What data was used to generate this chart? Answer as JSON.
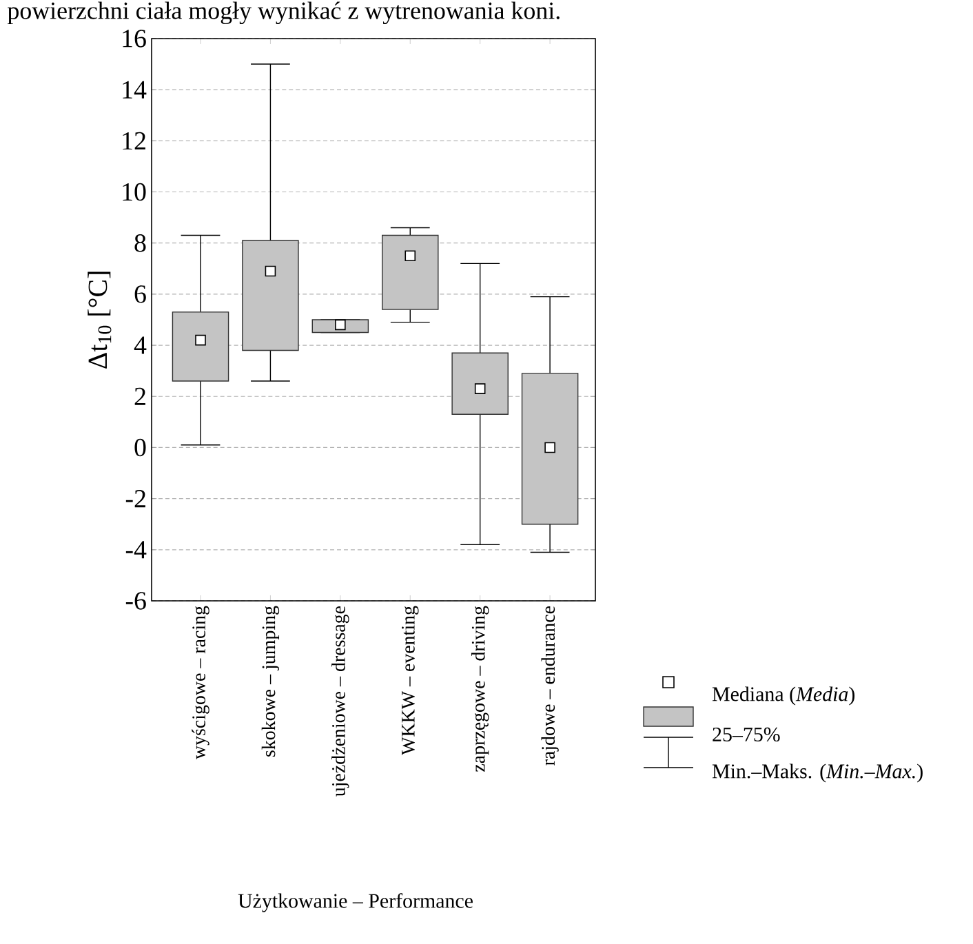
{
  "chart_data": {
    "type": "box",
    "xlabel": "Użytkowanie – Performance",
    "ylabel": "Δt$_{10}$ [°C]",
    "categories": [
      "wyścigowe – racing",
      "skokowe – jumping",
      "ujeżdżeniowe – dressage",
      "WKKW – eventing",
      "zaprzęgowe – driving",
      "rajdowe – endurance"
    ],
    "series": [
      {
        "color": "#c4c4c4",
        "boxes": [
          {
            "low": 0.1,
            "q1": 2.6,
            "median": 4.2,
            "q3": 5.3,
            "high": 8.3
          },
          {
            "low": 2.6,
            "q1": 3.8,
            "median": 6.9,
            "q3": 8.1,
            "high": 15.0
          },
          {
            "low": 4.5,
            "q1": 4.5,
            "median": 4.8,
            "q3": 5.0,
            "high": 5.0
          },
          {
            "low": 4.9,
            "q1": 5.4,
            "median": 7.5,
            "q3": 8.3,
            "high": 8.6
          },
          {
            "low": -3.8,
            "q1": 1.3,
            "median": 2.3,
            "q3": 3.7,
            "high": 7.2
          },
          {
            "low": -4.1,
            "q1": -3.0,
            "median": 0.0,
            "q3": 2.9,
            "high": 5.9
          }
        ]
      }
    ],
    "ylim": [
      -6,
      16
    ],
    "yticks": [
      -6,
      -4,
      -2,
      0,
      2,
      4,
      6,
      8,
      10,
      12,
      14,
      16
    ],
    "grid": "y",
    "annotations": [
      "powierzchni ciała mogły wynikać z wytrenowania koni.",
      "Mediana (*Media*)",
      "25–75%",
      "Min.–Maks. (*Min.–Max.*)"
    ]
  }
}
